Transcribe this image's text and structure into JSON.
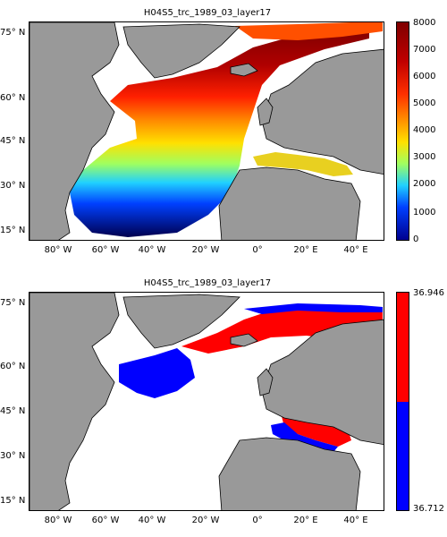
{
  "panels": [
    {
      "title": "H04S5_trc_1989_03_layer17",
      "colorbar": {
        "type": "continuous",
        "ticks": [
          "8000",
          "7000",
          "6000",
          "5000",
          "4000",
          "3000",
          "2000",
          "1000",
          "0"
        ]
      }
    },
    {
      "title": "H04S5_trc_1989_03_layer17",
      "colorbar": {
        "type": "two-color",
        "top_label": "36.946",
        "bottom_label": "36.712",
        "top_color": "#ff0000",
        "bottom_color": "#0000ff"
      }
    }
  ],
  "axes": {
    "y_labels": [
      "75° N",
      "60° N",
      "45° N",
      "30° N",
      "15° N"
    ],
    "x_labels": [
      "80° W",
      "60° W",
      "40° W",
      "20° W",
      "0°",
      "20° E",
      "40° E"
    ]
  },
  "colors": {
    "land": "#999999",
    "ocean_empty": "#ffffff",
    "high": "#ff0000",
    "low": "#0000ff"
  }
}
